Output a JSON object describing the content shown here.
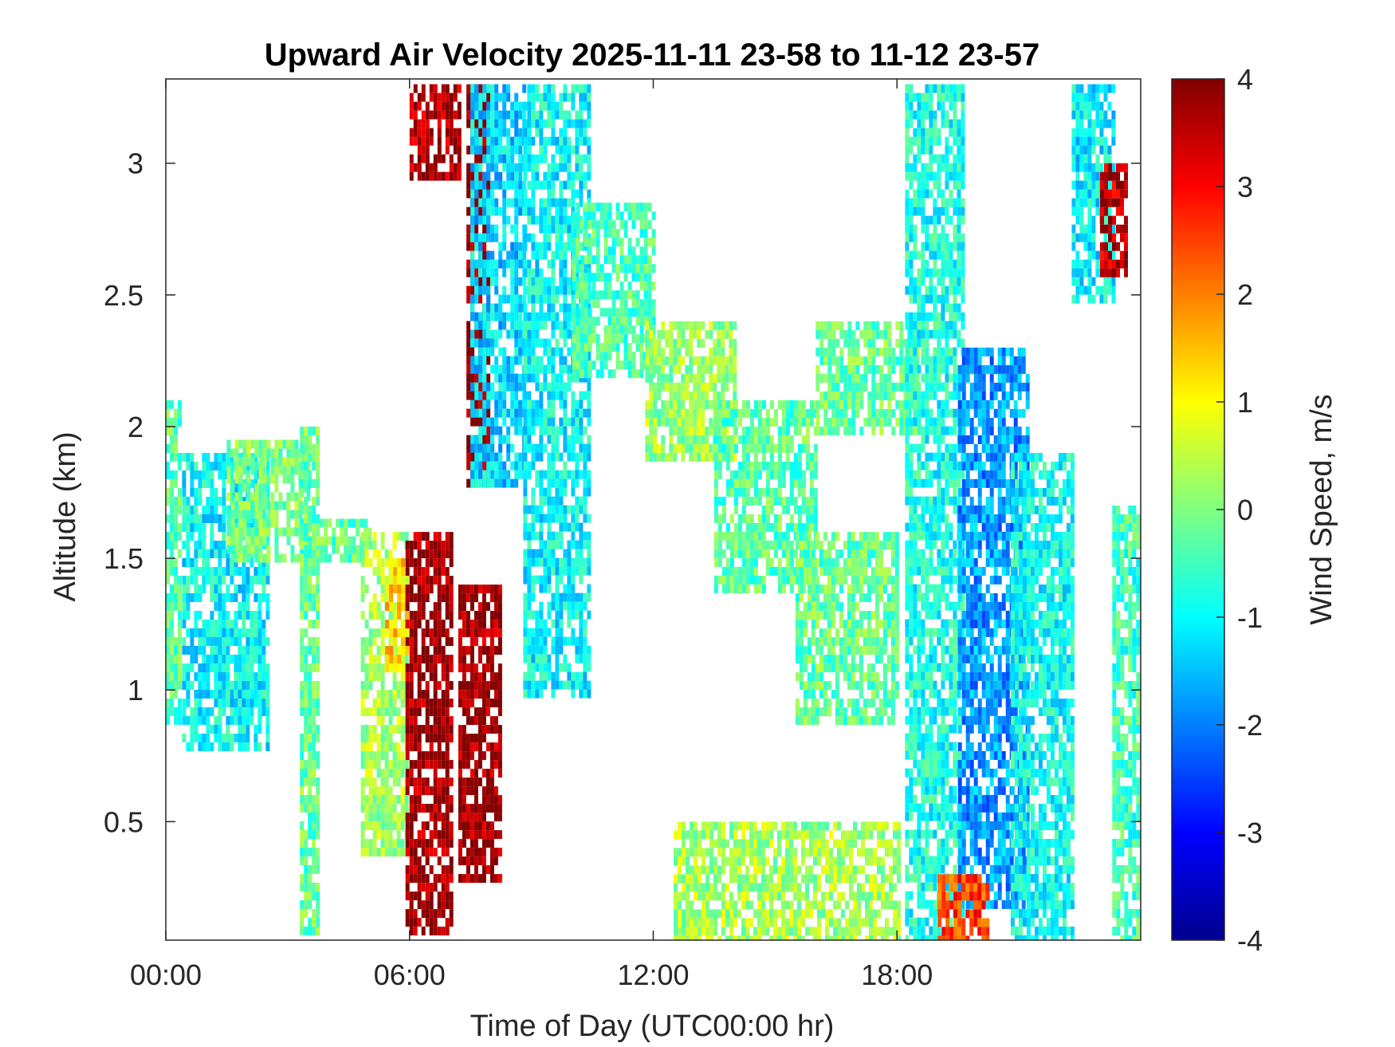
{
  "chart_data": {
    "type": "heatmap",
    "title": "Upward Air Velocity 2025-11-11 23-58 to 11-12 23-57",
    "xlabel": "Time of Day (UTC00:00 hr)",
    "ylabel": "Altitude (km)",
    "xlim": [
      0,
      24
    ],
    "ylim": [
      0.05,
      3.32
    ],
    "x_ticks": [
      {
        "value": 0,
        "label": "00:00"
      },
      {
        "value": 6,
        "label": "06:00"
      },
      {
        "value": 12,
        "label": "12:00"
      },
      {
        "value": 18,
        "label": "18:00"
      }
    ],
    "y_ticks": [
      {
        "value": 0.5,
        "label": "0.5"
      },
      {
        "value": 1,
        "label": "1"
      },
      {
        "value": 1.5,
        "label": "1.5"
      },
      {
        "value": 2,
        "label": "2"
      },
      {
        "value": 2.5,
        "label": "2.5"
      },
      {
        "value": 3,
        "label": "3"
      }
    ],
    "colorbar": {
      "label": "Wind Speed, m/s",
      "range": [
        -4,
        4
      ],
      "colormap": "jet",
      "ticks": [
        {
          "value": 4,
          "label": "4"
        },
        {
          "value": 3,
          "label": "3"
        },
        {
          "value": 2,
          "label": "2"
        },
        {
          "value": 1,
          "label": "1"
        },
        {
          "value": 0,
          "label": "0"
        },
        {
          "value": -1,
          "label": "-1"
        },
        {
          "value": -2,
          "label": "-2"
        },
        {
          "value": -3,
          "label": "-3"
        },
        {
          "value": -4,
          "label": "-4"
        }
      ]
    },
    "grid": false,
    "regions": [
      {
        "time_range": [
          0.0,
          0.3
        ],
        "alt_range": [
          0.9,
          2.1
        ],
        "value": -0.3
      },
      {
        "time_range": [
          0.4,
          2.5
        ],
        "alt_range": [
          0.8,
          1.9
        ],
        "value": -1.0
      },
      {
        "time_range": [
          1.5,
          3.5
        ],
        "alt_range": [
          1.5,
          1.95
        ],
        "value": 0.0
      },
      {
        "time_range": [
          3.3,
          5.0
        ],
        "alt_range": [
          1.5,
          1.65
        ],
        "value": -0.3
      },
      {
        "time_range": [
          3.3,
          3.7
        ],
        "alt_range": [
          0.1,
          2.0
        ],
        "value": -0.2
      },
      {
        "time_range": [
          4.8,
          5.9
        ],
        "alt_range": [
          0.4,
          1.6
        ],
        "value": 0.3
      },
      {
        "time_range": [
          5.4,
          5.9
        ],
        "alt_range": [
          1.1,
          1.5
        ],
        "value": 1.3
      },
      {
        "time_range": [
          5.9,
          7.0
        ],
        "alt_range": [
          0.1,
          1.6
        ],
        "value": 3.8
      },
      {
        "time_range": [
          6.0,
          7.2
        ],
        "alt_range": [
          2.95,
          3.3
        ],
        "value": 3.6
      },
      {
        "time_range": [
          7.2,
          8.2
        ],
        "alt_range": [
          0.3,
          1.4
        ],
        "value": 3.8
      },
      {
        "time_range": [
          7.4,
          7.9
        ],
        "alt_range": [
          1.8,
          3.3
        ],
        "value": 4.0
      },
      {
        "time_range": [
          7.5,
          8.8
        ],
        "alt_range": [
          1.8,
          3.3
        ],
        "value": -1.3
      },
      {
        "time_range": [
          8.8,
          10.4
        ],
        "alt_range": [
          1.0,
          3.3
        ],
        "value": -1.0
      },
      {
        "time_range": [
          10.0,
          12.0
        ],
        "alt_range": [
          2.2,
          2.85
        ],
        "value": -0.4
      },
      {
        "time_range": [
          11.8,
          14.0
        ],
        "alt_range": [
          1.9,
          2.4
        ],
        "value": 0.2
      },
      {
        "time_range": [
          13.5,
          16.0
        ],
        "alt_range": [
          1.4,
          2.1
        ],
        "value": -0.3
      },
      {
        "time_range": [
          15.5,
          18.0
        ],
        "alt_range": [
          0.9,
          1.6
        ],
        "value": -0.2
      },
      {
        "time_range": [
          16.0,
          18.5
        ],
        "alt_range": [
          2.0,
          2.4
        ],
        "value": -0.2
      },
      {
        "time_range": [
          12.5,
          18.0
        ],
        "alt_range": [
          0.05,
          0.5
        ],
        "value": 0.3
      },
      {
        "time_range": [
          18.2,
          19.6
        ],
        "alt_range": [
          0.05,
          3.3
        ],
        "value": -0.8
      },
      {
        "time_range": [
          19.5,
          21.2
        ],
        "alt_range": [
          0.2,
          2.3
        ],
        "value": -1.8
      },
      {
        "time_range": [
          20.8,
          22.3
        ],
        "alt_range": [
          0.05,
          1.9
        ],
        "value": -0.9
      },
      {
        "time_range": [
          22.3,
          23.3
        ],
        "alt_range": [
          2.5,
          3.3
        ],
        "value": -1.1
      },
      {
        "time_range": [
          23.3,
          24.0
        ],
        "alt_range": [
          0.05,
          1.7
        ],
        "value": -0.5
      },
      {
        "time_range": [
          19.0,
          20.2
        ],
        "alt_range": [
          0.05,
          0.3
        ],
        "value": 2.5
      },
      {
        "time_range": [
          23.0,
          23.6
        ],
        "alt_range": [
          2.6,
          3.0
        ],
        "value": 3.5
      }
    ]
  }
}
